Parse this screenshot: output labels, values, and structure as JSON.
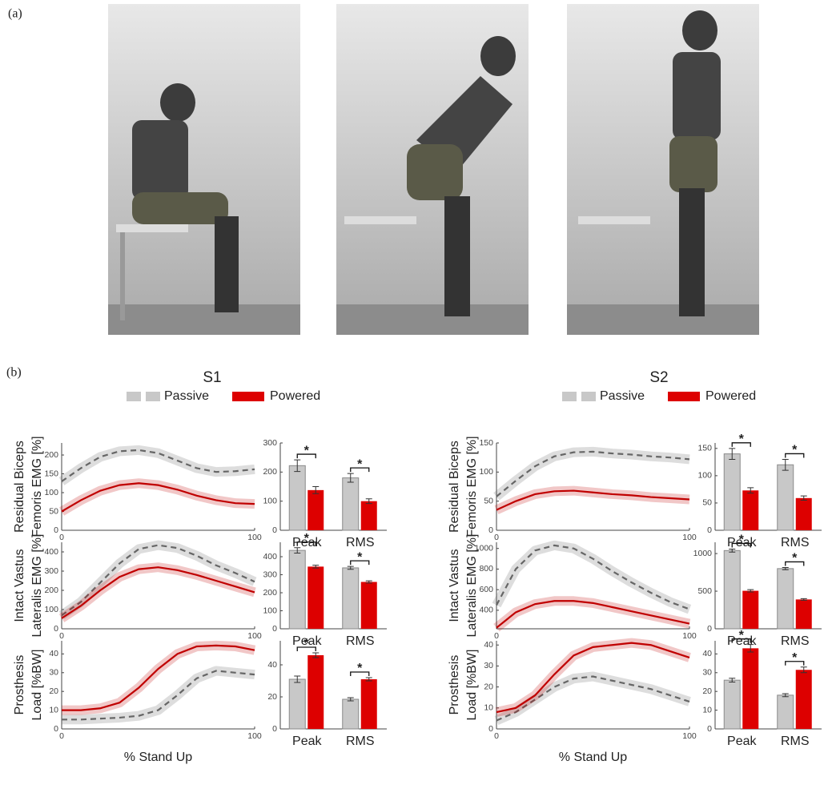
{
  "panel_a_label": "(a)",
  "panel_b_label": "(b)",
  "subjects": [
    "S1",
    "S2"
  ],
  "chart_data": [
    {
      "type": "line",
      "ylabel": [
        "Residual Biceps",
        "Femoris  EMG [%]"
      ],
      "x": [
        0,
        10,
        20,
        30,
        40,
        50,
        60,
        70,
        80,
        90,
        100
      ],
      "xlim": [
        0,
        100
      ],
      "xticks": [
        0,
        100
      ],
      "ylim": [
        0,
        232
      ],
      "yticks": [
        0,
        50,
        100,
        150,
        200
      ],
      "series": [
        {
          "name": "Passive",
          "color": "#666666",
          "style": "dashed",
          "values": [
            130,
            165,
            195,
            210,
            213,
            205,
            185,
            165,
            155,
            157,
            162
          ]
        },
        {
          "name": "Powered",
          "color": "#c00000",
          "style": "solid",
          "values": [
            50,
            80,
            105,
            120,
            125,
            120,
            108,
            92,
            80,
            72,
            70
          ]
        }
      ]
    },
    {
      "type": "bar",
      "categories": [
        "Peak",
        "RMS"
      ],
      "ylim": [
        0,
        300
      ],
      "yticks": [
        0,
        100,
        200,
        300
      ],
      "annotations": [
        "*",
        "*"
      ],
      "series": [
        {
          "name": "Passive",
          "color": "#c8c8c8",
          "values": [
            222,
            180
          ],
          "errors": [
            20,
            15
          ]
        },
        {
          "name": "Powered",
          "color": "#dd0000",
          "values": [
            138,
            100
          ],
          "errors": [
            12,
            8
          ]
        }
      ]
    },
    {
      "type": "line",
      "ylabel": [
        "Intact Vastus",
        "Lateralis  EMG [%]"
      ],
      "x": [
        0,
        10,
        20,
        30,
        40,
        50,
        60,
        70,
        80,
        90,
        100
      ],
      "xlim": [
        0,
        100
      ],
      "xticks": [
        0,
        100
      ],
      "ylim": [
        0,
        450
      ],
      "yticks": [
        0,
        100,
        200,
        300,
        400
      ],
      "series": [
        {
          "name": "Passive",
          "color": "#666666",
          "style": "dashed",
          "values": [
            70,
            140,
            240,
            340,
            415,
            435,
            420,
            380,
            330,
            290,
            245
          ]
        },
        {
          "name": "Powered",
          "color": "#c00000",
          "style": "solid",
          "values": [
            55,
            120,
            200,
            270,
            310,
            320,
            305,
            280,
            250,
            220,
            190
          ]
        }
      ]
    },
    {
      "type": "bar",
      "categories": [
        "Peak",
        "RMS"
      ],
      "ylim": [
        0,
        480
      ],
      "yticks": [
        0,
        100,
        200,
        300,
        400
      ],
      "annotations": [
        "*",
        "*"
      ],
      "series": [
        {
          "name": "Passive",
          "color": "#c8c8c8",
          "values": [
            435,
            338
          ],
          "errors": [
            15,
            8
          ]
        },
        {
          "name": "Powered",
          "color": "#dd0000",
          "values": [
            345,
            260
          ],
          "errors": [
            8,
            6
          ]
        }
      ]
    },
    {
      "type": "line",
      "ylabel": [
        "Prosthesis",
        "Load [%BW]"
      ],
      "xlabel": "% Stand Up",
      "x": [
        0,
        10,
        20,
        30,
        40,
        50,
        60,
        70,
        80,
        90,
        100
      ],
      "xlim": [
        0,
        100
      ],
      "xticks": [
        0,
        100
      ],
      "ylim": [
        0,
        47
      ],
      "yticks": [
        0,
        10,
        20,
        30,
        40
      ],
      "series": [
        {
          "name": "Passive",
          "color": "#666666",
          "style": "dashed",
          "values": [
            5,
            5,
            5.5,
            6,
            7,
            10,
            18,
            27,
            31,
            30,
            29
          ]
        },
        {
          "name": "Powered",
          "color": "#c00000",
          "style": "solid",
          "values": [
            10,
            10,
            11,
            14,
            22,
            32,
            40,
            44,
            44.5,
            44,
            42
          ]
        }
      ]
    },
    {
      "type": "bar",
      "categories": [
        "Peak",
        "RMS"
      ],
      "ylim": [
        0,
        55
      ],
      "yticks": [
        0,
        20,
        40
      ],
      "annotations": [
        "*",
        "*"
      ],
      "series": [
        {
          "name": "Passive",
          "color": "#c8c8c8",
          "values": [
            31,
            18.5
          ],
          "errors": [
            2,
            1
          ]
        },
        {
          "name": "Powered",
          "color": "#dd0000",
          "values": [
            46,
            31
          ],
          "errors": [
            1.5,
            1
          ]
        }
      ]
    },
    {
      "type": "line",
      "ylabel": [
        "Residual Biceps",
        "Femoris  EMG [%]"
      ],
      "x": [
        0,
        10,
        20,
        30,
        40,
        50,
        60,
        70,
        80,
        90,
        100
      ],
      "xlim": [
        0,
        100
      ],
      "xticks": [
        0,
        100
      ],
      "ylim": [
        0,
        150
      ],
      "yticks": [
        0,
        50,
        100,
        150
      ],
      "series": [
        {
          "name": "Passive",
          "color": "#666666",
          "style": "dashed",
          "values": [
            58,
            85,
            110,
            127,
            134,
            135,
            132,
            130,
            127,
            125,
            122
          ]
        },
        {
          "name": "Powered",
          "color": "#c00000",
          "style": "solid",
          "values": [
            35,
            50,
            62,
            67,
            68,
            65,
            62,
            60,
            57,
            55,
            53
          ]
        }
      ]
    },
    {
      "type": "bar",
      "categories": [
        "Peak",
        "RMS"
      ],
      "ylim": [
        0,
        160
      ],
      "yticks": [
        0,
        50,
        100,
        150
      ],
      "annotations": [
        "*",
        "*"
      ],
      "series": [
        {
          "name": "Passive",
          "color": "#c8c8c8",
          "values": [
            140,
            120
          ],
          "errors": [
            10,
            10
          ]
        },
        {
          "name": "Powered",
          "color": "#dd0000",
          "values": [
            73,
            59
          ],
          "errors": [
            5,
            4
          ]
        }
      ]
    },
    {
      "type": "line",
      "ylabel": [
        "Intact Vastus",
        "Lateralis  EMG [%]"
      ],
      "x": [
        0,
        10,
        20,
        30,
        40,
        50,
        60,
        70,
        80,
        90,
        100
      ],
      "xlim": [
        0,
        100
      ],
      "xticks": [
        0,
        100
      ],
      "ylim": [
        220,
        1060
      ],
      "yticks": [
        400,
        600,
        800,
        1000
      ],
      "series": [
        {
          "name": "Passive",
          "color": "#666666",
          "style": "dashed",
          "values": [
            450,
            800,
            980,
            1030,
            1000,
            900,
            780,
            670,
            570,
            480,
            410
          ]
        },
        {
          "name": "Powered",
          "color": "#c00000",
          "style": "solid",
          "values": [
            230,
            380,
            460,
            490,
            490,
            470,
            430,
            390,
            350,
            310,
            270
          ]
        }
      ]
    },
    {
      "type": "bar",
      "categories": [
        "Peak",
        "RMS"
      ],
      "ylim": [
        0,
        1150
      ],
      "yticks": [
        0,
        500,
        1000
      ],
      "annotations": [
        "*",
        "*"
      ],
      "series": [
        {
          "name": "Passive",
          "color": "#c8c8c8",
          "values": [
            1040,
            800
          ],
          "errors": [
            20,
            15
          ]
        },
        {
          "name": "Powered",
          "color": "#dd0000",
          "values": [
            505,
            390
          ],
          "errors": [
            15,
            10
          ]
        }
      ]
    },
    {
      "type": "line",
      "ylabel": [
        "Prosthesis",
        "Load [%BW]"
      ],
      "xlabel": "% Stand Up",
      "x": [
        0,
        10,
        20,
        30,
        40,
        50,
        60,
        70,
        80,
        90,
        100
      ],
      "xlim": [
        0,
        100
      ],
      "xticks": [
        0,
        100
      ],
      "ylim": [
        0,
        42
      ],
      "yticks": [
        0,
        10,
        20,
        30,
        40
      ],
      "series": [
        {
          "name": "Passive",
          "color": "#666666",
          "style": "dashed",
          "values": [
            4,
            8,
            14,
            20,
            24,
            25,
            23,
            21,
            19,
            16,
            13
          ]
        },
        {
          "name": "Powered",
          "color": "#c00000",
          "style": "solid",
          "values": [
            8,
            10,
            16,
            26,
            35,
            39,
            40,
            41,
            40,
            37,
            34
          ]
        }
      ]
    },
    {
      "type": "bar",
      "categories": [
        "Peak",
        "RMS"
      ],
      "ylim": [
        0,
        47
      ],
      "yticks": [
        0,
        10,
        20,
        30,
        40
      ],
      "annotations": [
        "*",
        "*"
      ],
      "series": [
        {
          "name": "Passive",
          "color": "#c8c8c8",
          "values": [
            26,
            18
          ],
          "errors": [
            1,
            0.8
          ]
        },
        {
          "name": "Powered",
          "color": "#dd0000",
          "values": [
            43,
            31.5
          ],
          "errors": [
            2,
            1.5
          ]
        }
      ]
    }
  ]
}
